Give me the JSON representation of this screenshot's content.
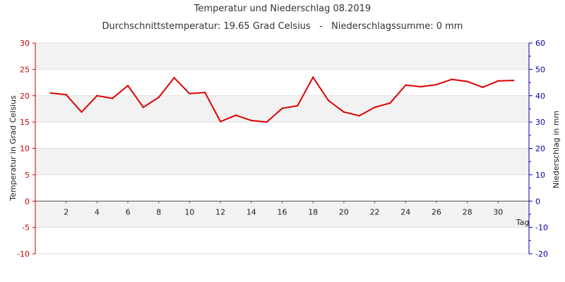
{
  "chart_data": {
    "type": "line",
    "title": "Temperatur und Niederschlag 08.2019",
    "subtitle": "Durchschnittstemperatur: 19.65 Grad Celsius   -   Niederschlagssumme: 0 mm",
    "xlabel": "Tag",
    "ylabel_left": "Temperatur in Grad Celsius",
    "ylabel_right": "Niederschlag in mm",
    "xlim": [
      0,
      32
    ],
    "ylim_left": [
      -10,
      30
    ],
    "ylim_right": [
      -20,
      60
    ],
    "x_ticks": [
      2,
      4,
      6,
      8,
      10,
      12,
      14,
      16,
      18,
      20,
      22,
      24,
      26,
      28,
      30
    ],
    "y_ticks_left": [
      -10,
      -5,
      0,
      5,
      10,
      15,
      20,
      25,
      30
    ],
    "y_ticks_right": [
      -20,
      -10,
      0,
      10,
      20,
      30,
      40,
      50,
      60
    ],
    "grid": "horizontal bands",
    "colors": {
      "series": "#dd0000",
      "left_axis": "#cc0000",
      "right_axis": "#0000aa",
      "band": "#f2f2f2",
      "grid": "#dddddd"
    },
    "series": [
      {
        "x": [
          1,
          2,
          3,
          4,
          5,
          6,
          7,
          8,
          9,
          10,
          11,
          12,
          13,
          14,
          15,
          16,
          17,
          18,
          19,
          20,
          21,
          22,
          23,
          24,
          25,
          26,
          27,
          28,
          29,
          30,
          31
        ],
        "values": [
          20.5,
          20.2,
          16.9,
          20.0,
          19.5,
          21.9,
          17.8,
          19.7,
          23.4,
          20.4,
          20.6,
          15.1,
          16.3,
          15.3,
          15.0,
          17.6,
          18.1,
          23.5,
          19.1,
          16.9,
          16.2,
          17.8,
          18.6,
          22.0,
          21.7,
          22.1,
          23.1,
          22.7,
          21.6,
          22.8,
          22.9
        ]
      }
    ]
  }
}
